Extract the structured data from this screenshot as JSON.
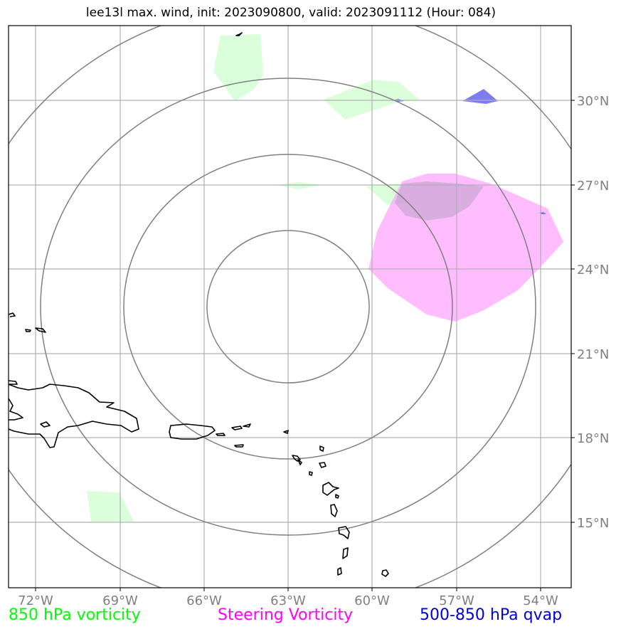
{
  "title": "lee13l max. wind, init: 2023090800, valid: 2023091112 (Hour: 084)",
  "lon_labels": [
    "72°W",
    "69°W",
    "66°W",
    "63°W",
    "60°W",
    "57°W",
    "54°W"
  ],
  "lat_labels": [
    "30°N",
    "27°N",
    "24°N",
    "21°N",
    "18°N",
    "15°N"
  ],
  "legend": {
    "v850": "850 hPa vorticity",
    "steering": "Steering Vorticity",
    "qvap": "500-850 hPa qvap"
  },
  "colors": {
    "v850_text": "#00ff00",
    "steering_text": "#ff00ff",
    "qvap_text": "#0000dd",
    "v850_fill": "#ccffcc",
    "steering_fill": "#ff99ff",
    "qvap_fill": "#6666ee",
    "range_rings": "#808080",
    "grid": "#b0b0b0",
    "coastline": "#000000"
  }
}
